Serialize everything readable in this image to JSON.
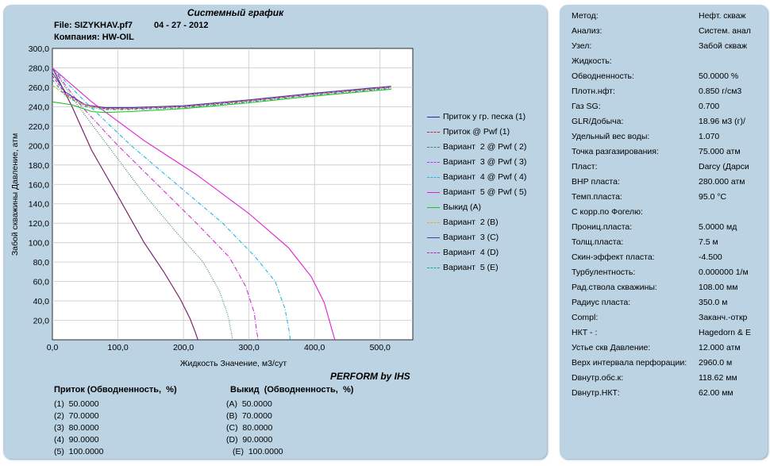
{
  "header": {
    "title": "Системный график",
    "file_label": "File: SIZYKHAV.pf7",
    "date": "04 - 27 - 2012",
    "company": "Компания: HW-OIL"
  },
  "chart_data": {
    "type": "line",
    "ylabel": "Забой скважины Давление, атм",
    "xlabel": "Жидкость Значение, м3/сут",
    "xlim": [
      0,
      550
    ],
    "ylim": [
      0,
      300
    ],
    "x_ticks": [
      "0,0",
      "100,0",
      "200,0",
      "300,0",
      "400,0",
      "500,0"
    ],
    "y_ticks": [
      "20,0",
      "40,0",
      "60,0",
      "80,0",
      "100,0",
      "120,0",
      "140,0",
      "160,0",
      "180,0",
      "200,0",
      "220,0",
      "240,0",
      "260,0",
      "280,0",
      "300,0"
    ],
    "grid": true,
    "legend_position": "right",
    "series": [
      {
        "name": "Приток у гр. песка (1)",
        "color": "#2a2aa0",
        "dash": "",
        "x": [
          0,
          30,
          60,
          100,
          140,
          170,
          195,
          210,
          218,
          222
        ],
        "y": [
          280,
          240,
          195,
          148,
          100,
          70,
          42,
          22,
          8,
          0
        ]
      },
      {
        "name": "Приток @ Pwf (1)",
        "color": "#c02040",
        "dash": "3,2",
        "x": [
          0,
          30,
          60,
          100,
          140,
          170,
          195,
          210,
          218,
          222
        ],
        "y": [
          280,
          240,
          195,
          148,
          100,
          70,
          42,
          22,
          8,
          0
        ]
      },
      {
        "name": "Вариант  2 @ Pwf ( 2)",
        "color": "#3a8a6a",
        "dash": "1,1.5",
        "x": [
          0,
          40,
          90,
          140,
          190,
          230,
          255,
          268,
          273,
          275
        ],
        "y": [
          280,
          240,
          195,
          150,
          110,
          80,
          50,
          25,
          8,
          0
        ]
      },
      {
        "name": "Вариант  3 @ Pwf ( 3)",
        "color": "#d030d0",
        "dash": "6,2,1,2",
        "x": [
          0,
          45,
          100,
          160,
          220,
          270,
          295,
          308,
          312,
          314
        ],
        "y": [
          280,
          240,
          200,
          160,
          120,
          85,
          55,
          28,
          8,
          0
        ]
      },
      {
        "name": "Вариант  4 @ Pwf ( 4)",
        "color": "#20b8e0",
        "dash": "5,2,1,2",
        "x": [
          0,
          50,
          120,
          190,
          260,
          310,
          340,
          355,
          361,
          363
        ],
        "y": [
          280,
          245,
          200,
          160,
          120,
          85,
          60,
          32,
          10,
          0
        ]
      },
      {
        "name": "Вариант  5 @ Pwf ( 5)",
        "color": "#e020d0",
        "dash": "",
        "x": [
          0,
          60,
          140,
          220,
          300,
          360,
          395,
          415,
          426,
          431
        ],
        "y": [
          280,
          245,
          205,
          170,
          130,
          95,
          65,
          38,
          12,
          0
        ]
      },
      {
        "name": "Выкид (A)",
        "color": "#20c020",
        "dash": "",
        "x": [
          0,
          30,
          60,
          80,
          120,
          200,
          300,
          400,
          500,
          517
        ],
        "y": [
          245,
          242,
          235,
          234,
          235,
          238,
          244,
          251,
          257,
          258
        ]
      },
      {
        "name": "Вариант  2 (B)",
        "color": "#e0b020",
        "dash": "4,2",
        "x": [
          0,
          20,
          50,
          80,
          120,
          200,
          300,
          400,
          500,
          517
        ],
        "y": [
          262,
          252,
          241,
          238,
          238,
          240,
          246,
          253,
          259,
          260
        ]
      },
      {
        "name": "Вариант  3 (C)",
        "color": "#4040a0",
        "dash": "",
        "x": [
          0,
          20,
          50,
          80,
          120,
          200,
          300,
          400,
          500,
          517
        ],
        "y": [
          275,
          255,
          242,
          239,
          239,
          241,
          247,
          254,
          260,
          261
        ]
      },
      {
        "name": "Вариант  4 (D)",
        "color": "#c020b0",
        "dash": "4,2",
        "x": [
          0,
          20,
          50,
          80,
          120,
          200,
          300,
          400,
          500,
          517
        ],
        "y": [
          272,
          253,
          242,
          238,
          238,
          240,
          246,
          253,
          259,
          260
        ]
      },
      {
        "name": "Вариант  5 (E)",
        "color": "#20a0a0",
        "dash": "4,2,1,2",
        "x": [
          0,
          20,
          50,
          80,
          120,
          200,
          300,
          400,
          500,
          517
        ],
        "y": [
          268,
          251,
          240,
          237,
          237,
          239,
          245,
          252,
          258,
          259
        ]
      }
    ]
  },
  "perform_label": "PERFORM by IHS",
  "bottom": {
    "inflow_header": "Приток (Обводненность,  %)",
    "outflow_header": "Выкид  (Обводненность,  %)",
    "inflow_rows": [
      "(1)  50.0000",
      "(2)  70.0000",
      "(3)  80.0000",
      "(4)  90.0000",
      "(5)  100.0000"
    ],
    "outflow_rows": [
      "(A)  50.0000",
      "(B)  70.0000",
      "(C)  80.0000",
      "(D)  90.0000",
      "(E)  100.0000"
    ]
  },
  "properties": [
    {
      "key": "Метод:",
      "value": "Нефт. скваж"
    },
    {
      "key": "Анализ:",
      "value": "Систем. анал"
    },
    {
      "key": "Узел:",
      "value": "Забой скваж"
    },
    {
      "key": "Жидкость:",
      "value": ""
    },
    {
      "key": "Обводненность:",
      "value": "50.0000 %"
    },
    {
      "key": "Плотн.нфт:",
      "value": "0.850 г/см3"
    },
    {
      "key": "Газ SG:",
      "value": "0.700"
    },
    {
      "key": "GLR/Добыча:",
      "value": "18.96 м3 (г)/"
    },
    {
      "key": "Удельный вес воды:",
      "value": "1.070"
    },
    {
      "key": "Точка разгазирования:",
      "value": "75.000 атм"
    },
    {
      "key": "Пласт:",
      "value": "Darcy (Дарси"
    },
    {
      "key": "ВНР пласта:",
      "value": "280.000 атм"
    },
    {
      "key": "Темп.пласта:",
      "value": "95.0 °C"
    },
    {
      "key": "С корр.по Фогелю:",
      "value": ""
    },
    {
      "key": "Прониц.пласта:",
      "value": "5.0000 мд"
    },
    {
      "key": "Толщ.пласта:",
      "value": "7.5 м"
    },
    {
      "key": "Скин-эффект пласта:",
      "value": "-4.500"
    },
    {
      "key": "Турбулентность:",
      "value": "0.000000 1/м"
    },
    {
      "key": "Рад.ствола скважины:",
      "value": "108.00 мм"
    },
    {
      "key": "Радиус пласта:",
      "value": "350.0 м"
    },
    {
      "key": "Compl:",
      "value": "Заканч.-откр"
    },
    {
      "key": "НКТ - :",
      "value": "Hagedorn & E"
    },
    {
      "key": "Устье скв Давление:",
      "value": "12.000 атм"
    },
    {
      "key": "Верх интервала перфорации:",
      "value": "2960.0 м"
    },
    {
      "key": "Dвнутр.обс.к:",
      "value": "118.62 мм"
    },
    {
      "key": "Dвнутр.НКТ:",
      "value": "62.00 мм"
    }
  ]
}
